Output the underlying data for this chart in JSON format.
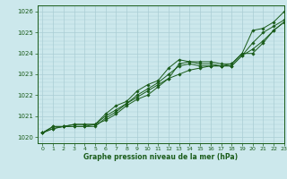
{
  "title": "Graphe pression niveau de la mer (hPa)",
  "xlim": [
    -0.5,
    23
  ],
  "ylim": [
    1019.7,
    1026.3
  ],
  "yticks": [
    1020,
    1021,
    1022,
    1023,
    1024,
    1025,
    1026
  ],
  "xticks": [
    0,
    1,
    2,
    3,
    4,
    5,
    6,
    7,
    8,
    9,
    10,
    11,
    12,
    13,
    14,
    15,
    16,
    17,
    18,
    19,
    20,
    21,
    22,
    23
  ],
  "bg_color": "#cce8ec",
  "grid_color": "#aacdd4",
  "line_color": "#1a5c1a",
  "series": [
    [
      1020.2,
      1020.5,
      1020.5,
      1020.6,
      1020.6,
      1020.6,
      1021.1,
      1021.5,
      1021.7,
      1022.2,
      1022.5,
      1022.7,
      1023.3,
      1023.7,
      1023.6,
      1023.6,
      1023.6,
      1023.5,
      1023.5,
      1024.0,
      1025.1,
      1025.2,
      1025.5,
      1026.0
    ],
    [
      1020.2,
      1020.5,
      1020.5,
      1020.6,
      1020.6,
      1020.6,
      1021.0,
      1021.3,
      1021.6,
      1021.9,
      1022.2,
      1022.5,
      1022.8,
      1023.5,
      1023.6,
      1023.5,
      1023.5,
      1023.4,
      1023.4,
      1023.9,
      1024.5,
      1025.0,
      1025.3,
      1025.6
    ],
    [
      1020.2,
      1020.4,
      1020.5,
      1020.5,
      1020.5,
      1020.5,
      1020.9,
      1021.2,
      1021.6,
      1022.0,
      1022.3,
      1022.6,
      1023.0,
      1023.4,
      1023.5,
      1023.4,
      1023.4,
      1023.4,
      1023.4,
      1023.9,
      1024.2,
      1024.6,
      1025.1,
      1025.5
    ],
    [
      1020.2,
      1020.4,
      1020.5,
      1020.5,
      1020.5,
      1020.6,
      1020.8,
      1021.1,
      1021.5,
      1021.8,
      1022.0,
      1022.4,
      1022.8,
      1023.0,
      1023.2,
      1023.3,
      1023.4,
      1023.4,
      1023.5,
      1024.0,
      1024.0,
      1024.5,
      1025.1,
      1025.5
    ]
  ]
}
